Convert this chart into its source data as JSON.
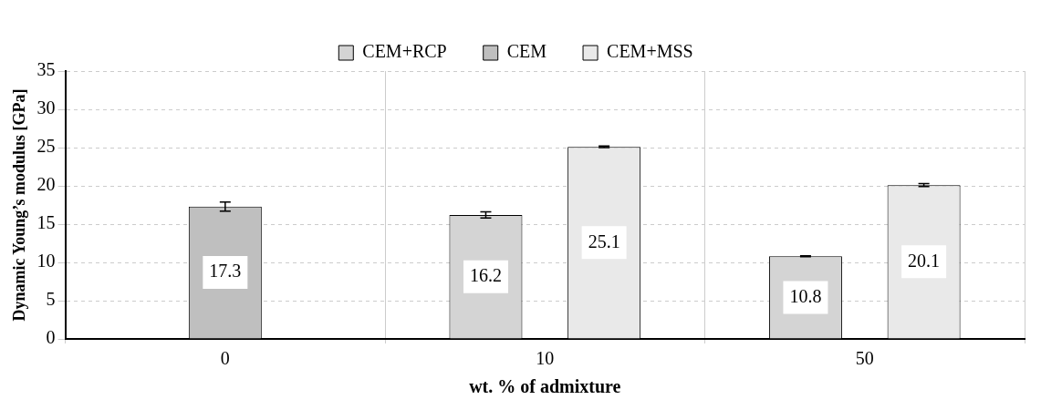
{
  "chart_data": {
    "type": "bar",
    "xlabel": "wt. % of admixture",
    "ylabel": "Dynamic Young’s modulus [GPa]",
    "categories": [
      "0",
      "10",
      "50"
    ],
    "series": [
      {
        "name": "CEM+RCP",
        "color": "#d4d4d4",
        "values": [
          null,
          16.2,
          10.8
        ],
        "errors": [
          null,
          0.4,
          0.05
        ]
      },
      {
        "name": "CEM",
        "color": "#bfbfbf",
        "values": [
          17.3,
          null,
          null
        ],
        "errors": [
          0.6,
          null,
          null
        ]
      },
      {
        "name": "CEM+MSS",
        "color": "#e9e9e9",
        "values": [
          null,
          25.1,
          20.1
        ],
        "errors": [
          null,
          0.1,
          0.2
        ]
      }
    ],
    "ylim": [
      0,
      35
    ],
    "yticks": [
      0,
      5,
      10,
      15,
      20,
      25,
      30,
      35
    ],
    "grid": true,
    "legend": "top",
    "data_labels": true
  }
}
